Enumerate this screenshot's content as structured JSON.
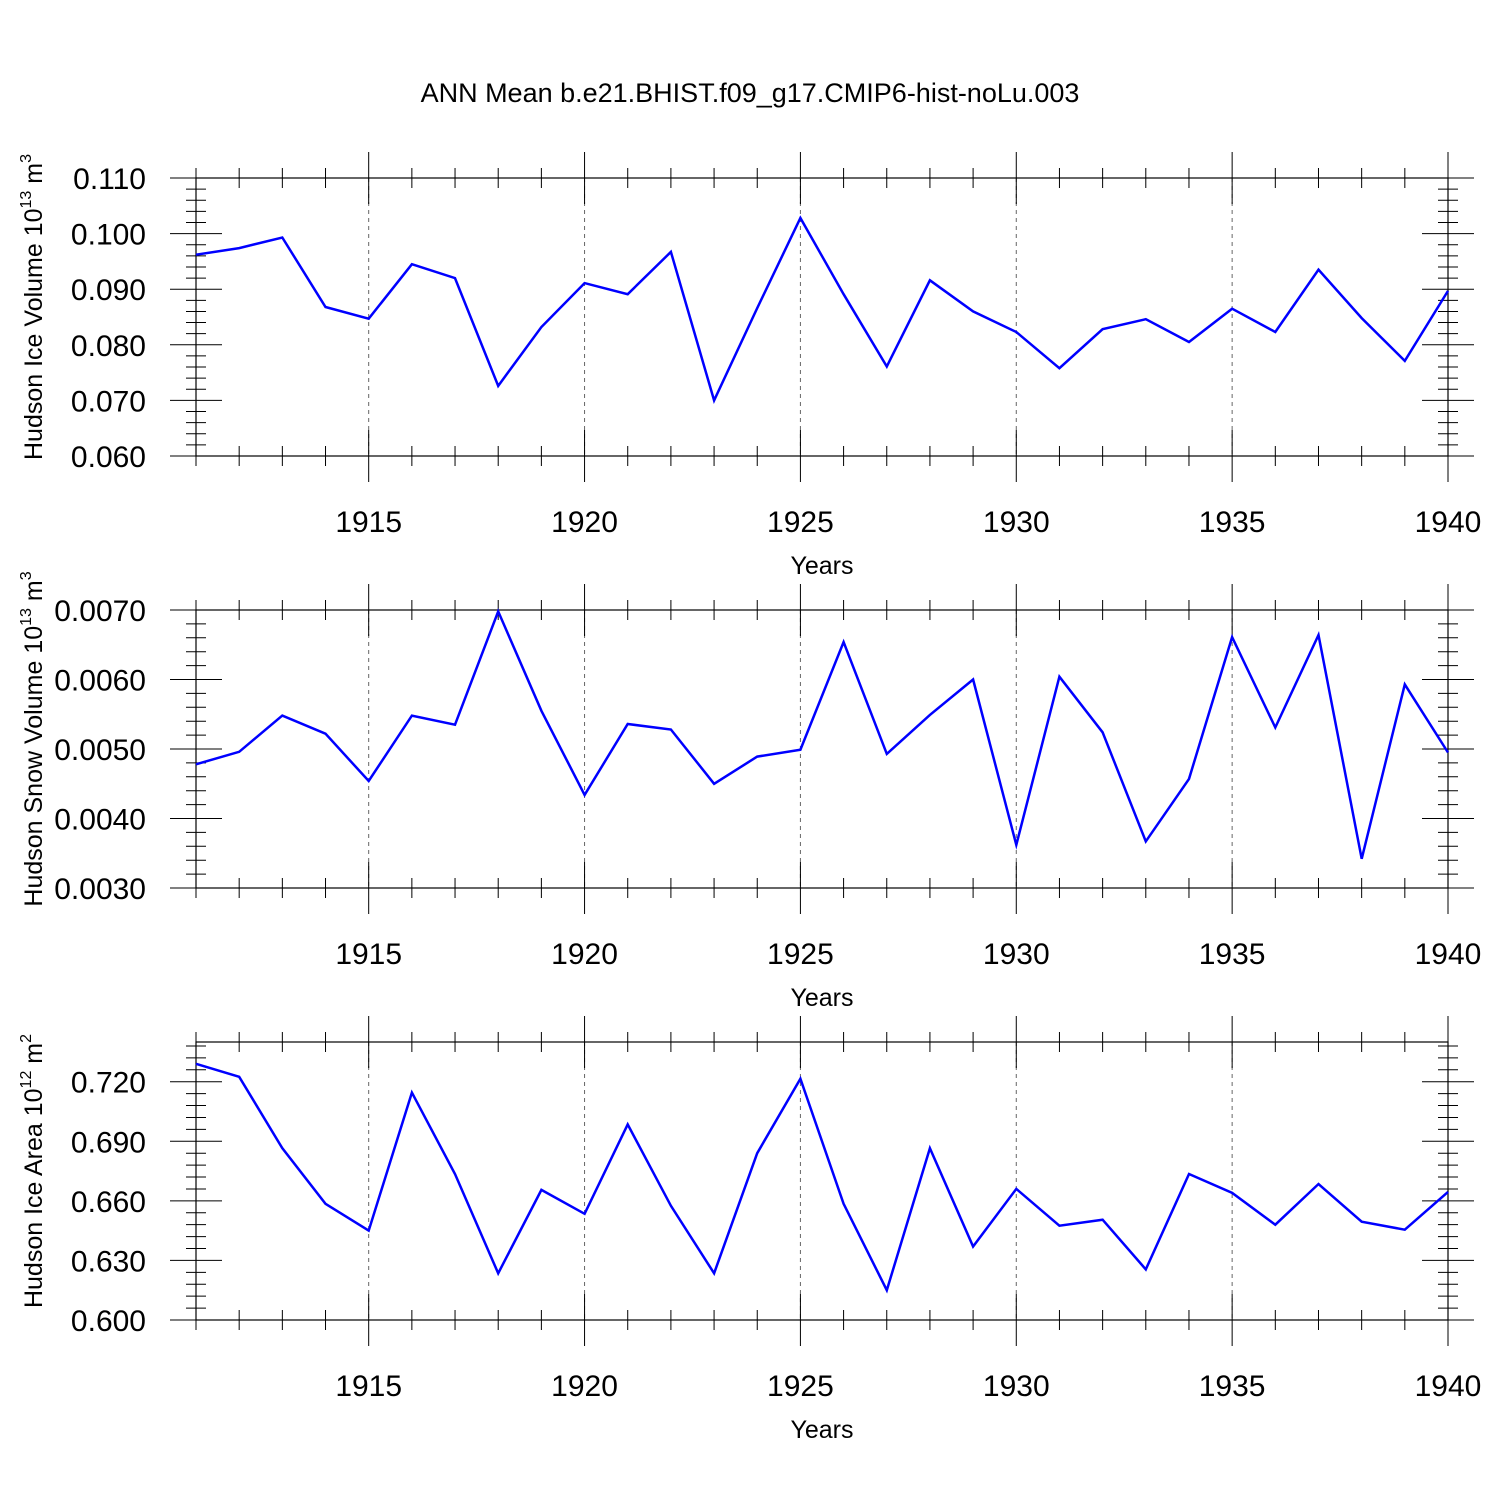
{
  "figure": {
    "title": "ANN Mean b.e21.BHIST.f09_g17.CMIP6-hist-noLu.003",
    "line_color": "#0000ff",
    "grid_color": "#666666"
  },
  "chart_data": [
    {
      "type": "line",
      "name": "ice-volume",
      "ylabel_prefix": "Hudson Ice Volume 10",
      "ylabel_exp": "13",
      "ylabel_unit": " m",
      "ylabel_unit_exp": "3",
      "xlabel": "Years",
      "xlim": [
        1911,
        1940
      ],
      "ylim": [
        0.06,
        0.11
      ],
      "yticks": [
        0.06,
        0.07,
        0.08,
        0.09,
        0.1,
        0.11
      ],
      "ytick_labels": [
        "0.060",
        "0.070",
        "0.080",
        "0.090",
        "0.100",
        "0.110"
      ],
      "xticks": [
        1915,
        1920,
        1925,
        1930,
        1935,
        1940
      ],
      "xtick_labels": [
        "1915",
        "1920",
        "1925",
        "1930",
        "1935",
        "1940"
      ],
      "x": [
        1911,
        1912,
        1913,
        1914,
        1915,
        1916,
        1917,
        1918,
        1919,
        1920,
        1921,
        1922,
        1923,
        1924,
        1925,
        1926,
        1927,
        1928,
        1929,
        1930,
        1931,
        1932,
        1933,
        1934,
        1935,
        1936,
        1937,
        1938,
        1939,
        1940
      ],
      "y": [
        0.0962,
        0.0974,
        0.0993,
        0.0868,
        0.0847,
        0.0945,
        0.092,
        0.0726,
        0.0832,
        0.0911,
        0.0891,
        0.0967,
        0.07,
        0.0866,
        0.1028,
        0.0891,
        0.0761,
        0.0916,
        0.086,
        0.0823,
        0.0758,
        0.0828,
        0.0846,
        0.0805,
        0.0865,
        0.0823,
        0.0935,
        0.0848,
        0.0771,
        0.0897
      ]
    },
    {
      "type": "line",
      "name": "snow-volume",
      "ylabel_prefix": "Hudson Snow Volume 10",
      "ylabel_exp": "13",
      "ylabel_unit": " m",
      "ylabel_unit_exp": "3",
      "xlabel": "Years",
      "xlim": [
        1911,
        1940
      ],
      "ylim": [
        0.003,
        0.007
      ],
      "yticks": [
        0.003,
        0.004,
        0.005,
        0.006,
        0.007
      ],
      "ytick_labels": [
        "0.0030",
        "0.0040",
        "0.0050",
        "0.0060",
        "0.0070"
      ],
      "xticks": [
        1915,
        1920,
        1925,
        1930,
        1935,
        1940
      ],
      "xtick_labels": [
        "1915",
        "1920",
        "1925",
        "1930",
        "1935",
        "1940"
      ],
      "x": [
        1911,
        1912,
        1913,
        1914,
        1915,
        1916,
        1917,
        1918,
        1919,
        1920,
        1921,
        1922,
        1923,
        1924,
        1925,
        1926,
        1927,
        1928,
        1929,
        1930,
        1931,
        1932,
        1933,
        1934,
        1935,
        1936,
        1937,
        1938,
        1939,
        1940
      ],
      "y": [
        0.00478,
        0.00496,
        0.00548,
        0.00522,
        0.00454,
        0.00548,
        0.00535,
        0.00698,
        0.00555,
        0.00434,
        0.00536,
        0.00528,
        0.0045,
        0.00489,
        0.00499,
        0.00654,
        0.00493,
        0.00549,
        0.006,
        0.00362,
        0.00604,
        0.00524,
        0.00367,
        0.00457,
        0.00661,
        0.00531,
        0.00664,
        0.00342,
        0.00593,
        0.00495
      ]
    },
    {
      "type": "line",
      "name": "ice-area",
      "ylabel_prefix": "Hudson Ice Area 10",
      "ylabel_exp": "12",
      "ylabel_unit": " m",
      "ylabel_unit_exp": "2",
      "xlabel": "Years",
      "xlim": [
        1911,
        1940
      ],
      "ylim": [
        0.6,
        0.74
      ],
      "yticks": [
        0.6,
        0.63,
        0.66,
        0.69,
        0.72
      ],
      "ytick_labels": [
        "0.600",
        "0.630",
        "0.660",
        "0.690",
        "0.720"
      ],
      "xticks": [
        1915,
        1920,
        1925,
        1930,
        1935,
        1940
      ],
      "xtick_labels": [
        "1915",
        "1920",
        "1925",
        "1930",
        "1935",
        "1940"
      ],
      "x": [
        1911,
        1912,
        1913,
        1914,
        1915,
        1916,
        1917,
        1918,
        1919,
        1920,
        1921,
        1922,
        1923,
        1924,
        1925,
        1926,
        1927,
        1928,
        1929,
        1930,
        1931,
        1932,
        1933,
        1934,
        1935,
        1936,
        1937,
        1938,
        1939,
        1940
      ],
      "y": [
        0.729,
        0.7225,
        0.6865,
        0.6585,
        0.645,
        0.7145,
        0.6735,
        0.6235,
        0.6655,
        0.6535,
        0.6985,
        0.6575,
        0.6235,
        0.684,
        0.7215,
        0.6585,
        0.615,
        0.6865,
        0.637,
        0.666,
        0.6475,
        0.6505,
        0.6255,
        0.6735,
        0.664,
        0.648,
        0.6685,
        0.6495,
        0.6455,
        0.6645
      ]
    }
  ]
}
